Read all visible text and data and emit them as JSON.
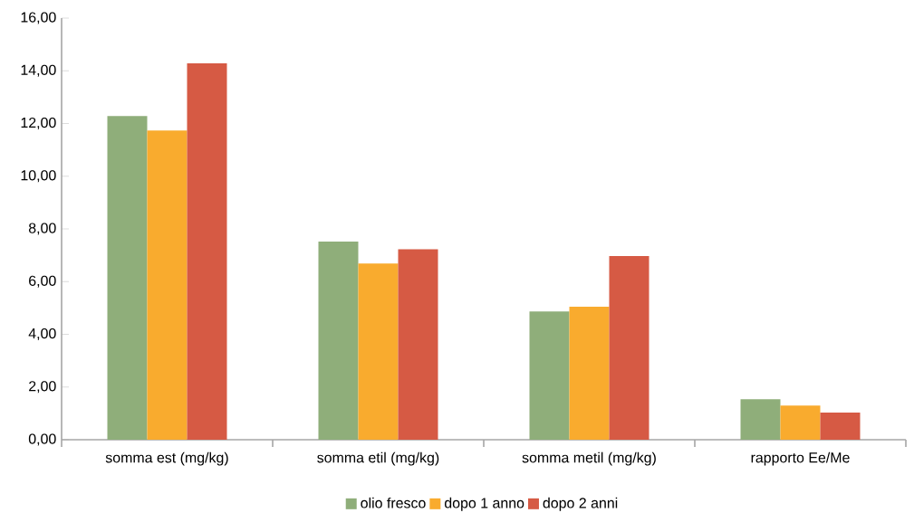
{
  "chart_data": {
    "type": "bar",
    "categories": [
      "somma est (mg/kg)",
      "somma etil (mg/kg)",
      "somma metil (mg/kg)",
      "rapporto Ee/Me"
    ],
    "series": [
      {
        "name": "olio fresco",
        "color": "#8fae7a",
        "values": [
          12.28,
          7.52,
          4.87,
          1.54
        ]
      },
      {
        "name": "dopo 1 anno",
        "color": "#f9ab2e",
        "values": [
          11.73,
          6.69,
          5.05,
          1.3
        ]
      },
      {
        "name": "dopo 2 anni",
        "color": "#d65a44",
        "values": [
          14.28,
          7.23,
          6.97,
          1.03
        ]
      }
    ],
    "ylim": [
      0,
      16
    ],
    "yticks": [
      {
        "value": 0,
        "label": "0,00"
      },
      {
        "value": 2,
        "label": "2,00"
      },
      {
        "value": 4,
        "label": "4,00"
      },
      {
        "value": 6,
        "label": "6,00"
      },
      {
        "value": 8,
        "label": "8,00"
      },
      {
        "value": 10,
        "label": "10,00"
      },
      {
        "value": 12,
        "label": "12,00"
      },
      {
        "value": 14,
        "label": "14,00"
      },
      {
        "value": 16,
        "label": "16,00"
      }
    ],
    "grid": false,
    "legend": "bottom"
  }
}
